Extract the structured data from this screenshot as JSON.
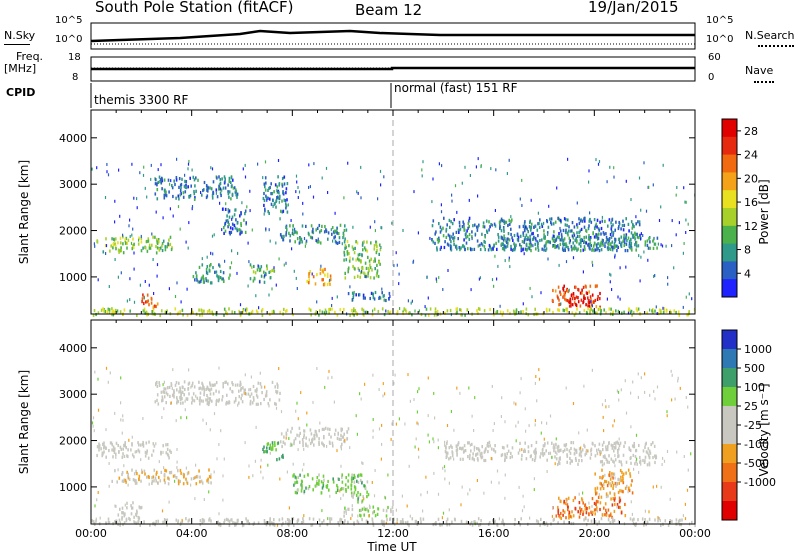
{
  "header": {
    "station": "South Pole Station (fitACF)",
    "beam": "Beam 12",
    "date": "19/Jan/2015"
  },
  "aux_panels": {
    "nsky_label": "N.Sky",
    "nsky_ticks": [
      "10^5",
      "10^0"
    ],
    "nsearch_label": "N.Search",
    "nsearch_ticks": [
      "10^5",
      "10^0"
    ],
    "freq_label_line1": "Freq.",
    "freq_label_line2": "[MHz]",
    "freq_ticks": [
      "18",
      "8"
    ],
    "nave_label": "Nave",
    "nave_ticks": [
      "60",
      "0"
    ],
    "cpid_label": "CPID",
    "cpid_modes": [
      "themis 3300 RF",
      "normal (fast) 151 RF"
    ]
  },
  "colors": {
    "power_scale": [
      "#1f23ff",
      "#2a5fc4",
      "#2f9a8a",
      "#4bb24b",
      "#a8d02a",
      "#e8e020",
      "#f3a21a",
      "#f26a10",
      "#e52a10",
      "#e00000"
    ],
    "velocity_scale": [
      "#2230c8",
      "#2e78b4",
      "#3f9f6a",
      "#6fcf3a",
      "#c8c8c0",
      "#c8c8c0",
      "#f0a020",
      "#f07018",
      "#e83a18",
      "#e00000"
    ]
  },
  "chart_data": [
    {
      "type": "heatmap",
      "title": "",
      "xlabel": "",
      "ylabel": "Slant Range [km]",
      "xlim_hours": [
        0,
        24
      ],
      "ylim": [
        200,
        4600
      ],
      "x_ticks": [
        "00:00",
        "04:00",
        "08:00",
        "12:00",
        "16:00",
        "20:00",
        "00:00"
      ],
      "y_ticks": [
        "1000",
        "2000",
        "3000",
        "4000"
      ],
      "colorbar_label": "Power [dB]",
      "colorbar_ticks": [
        "4",
        "8",
        "12",
        "16",
        "20",
        "24",
        "28"
      ],
      "colorbar_range": [
        0,
        30
      ],
      "echo_bands": [
        {
          "t0": 0.2,
          "t1": 3.2,
          "r0": 1550,
          "r1": 1900,
          "level": 12
        },
        {
          "t0": 2.5,
          "t1": 5.8,
          "r0": 2700,
          "r1": 3200,
          "level": 6
        },
        {
          "t0": 5.2,
          "t1": 6.2,
          "r0": 1900,
          "r1": 2500,
          "level": 6
        },
        {
          "t0": 6.8,
          "t1": 7.8,
          "r0": 2400,
          "r1": 3200,
          "level": 6
        },
        {
          "t0": 7.5,
          "t1": 10.2,
          "r0": 1750,
          "r1": 2150,
          "level": 8
        },
        {
          "t0": 4.0,
          "t1": 5.5,
          "r0": 900,
          "r1": 1300,
          "level": 8
        },
        {
          "t0": 6.3,
          "t1": 7.3,
          "r0": 900,
          "r1": 1300,
          "level": 10
        },
        {
          "t0": 8.5,
          "t1": 9.5,
          "r0": 850,
          "r1": 1200,
          "level": 20
        },
        {
          "t0": 10.0,
          "t1": 11.5,
          "r0": 1000,
          "r1": 1800,
          "level": 12
        },
        {
          "t0": 10.2,
          "t1": 12.0,
          "r0": 500,
          "r1": 700,
          "level": 6
        },
        {
          "t0": 13.5,
          "t1": 21.8,
          "r0": 1600,
          "r1": 2300,
          "level": 6
        },
        {
          "t0": 16.0,
          "t1": 22.5,
          "r0": 1600,
          "r1": 1900,
          "level": 8
        },
        {
          "t0": 18.3,
          "t1": 20.2,
          "r0": 350,
          "r1": 850,
          "level": 24
        },
        {
          "t0": 19.0,
          "t1": 19.8,
          "r0": 400,
          "r1": 700,
          "level": 29
        },
        {
          "t0": 2.0,
          "t1": 2.7,
          "r0": 350,
          "r1": 650,
          "level": 24
        },
        {
          "t0": 0.0,
          "t1": 24.0,
          "r0": 200,
          "r1": 350,
          "level": 14
        }
      ]
    },
    {
      "type": "heatmap",
      "title": "",
      "xlabel": "Time UT",
      "ylabel": "Slant Range [km]",
      "xlim_hours": [
        0,
        24
      ],
      "ylim": [
        200,
        4600
      ],
      "x_ticks": [
        "00:00",
        "04:00",
        "08:00",
        "12:00",
        "16:00",
        "20:00",
        "00:00"
      ],
      "y_ticks": [
        "1000",
        "2000",
        "3000",
        "4000"
      ],
      "colorbar_label": "Velocity [m s⁻¹]",
      "colorbar_ticks": [
        "1000",
        "500",
        "100",
        "25",
        "-25",
        "-100",
        "-500",
        "-1000"
      ],
      "colorbar_range": [
        -1000,
        1000
      ],
      "echo_bands": [
        {
          "t0": 0.2,
          "t1": 3.2,
          "r0": 1650,
          "r1": 2000,
          "level": 0
        },
        {
          "t0": 2.5,
          "t1": 7.5,
          "r0": 2800,
          "r1": 3300,
          "level": 0
        },
        {
          "t0": 0.8,
          "t1": 4.8,
          "r0": 1100,
          "r1": 1400,
          "level": -200
        },
        {
          "t0": 1.0,
          "t1": 2.0,
          "r0": 300,
          "r1": 700,
          "level": 0
        },
        {
          "t0": 6.8,
          "t1": 7.6,
          "r0": 1600,
          "r1": 2000,
          "level": 400
        },
        {
          "t0": 7.5,
          "t1": 10.2,
          "r0": 1900,
          "r1": 2300,
          "level": 0
        },
        {
          "t0": 8.0,
          "t1": 10.5,
          "r0": 900,
          "r1": 1300,
          "level": 300
        },
        {
          "t0": 10.0,
          "t1": 12.0,
          "r0": 400,
          "r1": 600,
          "level": 200
        },
        {
          "t0": 10.3,
          "t1": 11.0,
          "r0": 700,
          "r1": 1300,
          "level": 300
        },
        {
          "t0": 14.0,
          "t1": 18.5,
          "r0": 1600,
          "r1": 2000,
          "level": 0
        },
        {
          "t0": 18.5,
          "t1": 22.5,
          "r0": 1500,
          "r1": 2000,
          "level": 80
        },
        {
          "t0": 18.3,
          "t1": 21.2,
          "r0": 350,
          "r1": 800,
          "level": -500
        },
        {
          "t0": 20.0,
          "t1": 21.5,
          "r0": 800,
          "r1": 1400,
          "level": -300
        },
        {
          "t0": 0.0,
          "t1": 24.0,
          "r0": 200,
          "r1": 350,
          "level": 0
        }
      ]
    }
  ]
}
